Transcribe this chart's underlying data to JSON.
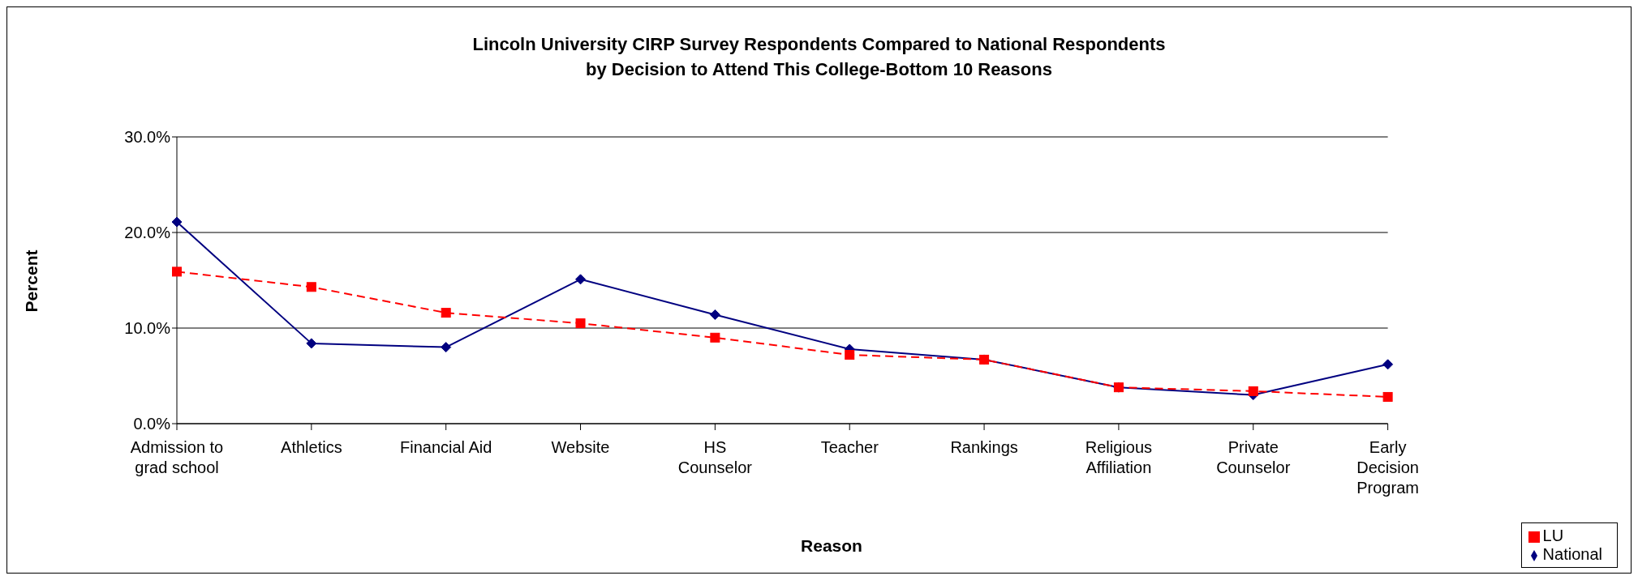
{
  "chart_data": {
    "type": "line",
    "title": "Lincoln University CIRP Survey Respondents Compared to National Respondents\nby Decision to Attend This College-Bottom 10 Reasons",
    "xlabel": "Reason",
    "ylabel": "Percent",
    "categories": [
      "Admission to grad school",
      "Athletics",
      "Financial Aid",
      "Website",
      "HS Counselor",
      "Teacher",
      "Rankings",
      "Religious Affiliation",
      "Private Counselor",
      "Early Decision Program"
    ],
    "series": [
      {
        "name": "National",
        "color": "#000080",
        "marker": "diamond",
        "line_style": "solid",
        "values": [
          21.1,
          8.4,
          8.0,
          15.1,
          11.4,
          7.8,
          6.7,
          3.8,
          3.0,
          6.2
        ]
      },
      {
        "name": "LU",
        "color": "#ff0000",
        "marker": "square",
        "line_style": "dashed",
        "values": [
          15.9,
          14.3,
          11.6,
          10.5,
          9.0,
          7.2,
          6.7,
          3.8,
          3.4,
          2.8
        ]
      }
    ],
    "ylim": [
      0,
      30
    ],
    "yticks": [
      {
        "value": 0,
        "label": "0.0%"
      },
      {
        "value": 10,
        "label": "10.0%"
      },
      {
        "value": 20,
        "label": "20.0%"
      },
      {
        "value": 30,
        "label": "30.0%"
      }
    ],
    "grid": "y",
    "legend": "bottom right"
  }
}
